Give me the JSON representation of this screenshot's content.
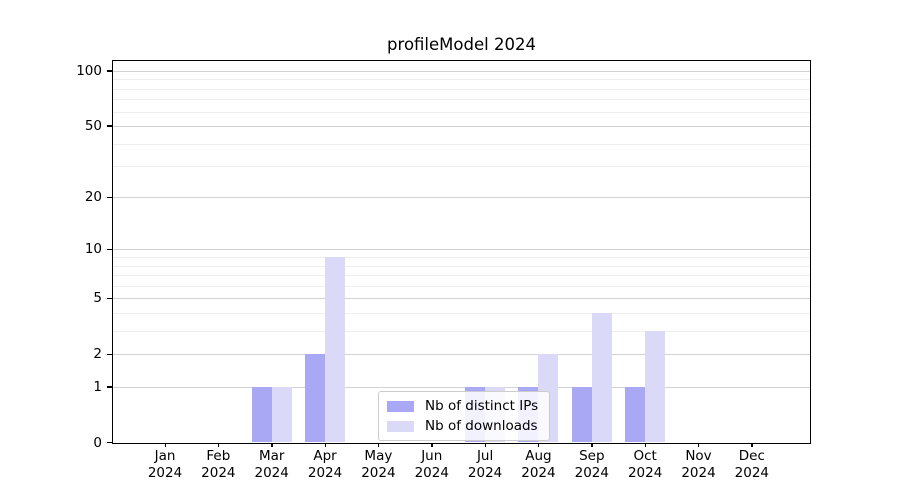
{
  "title": "profileModel 2024",
  "chart_data": {
    "type": "bar",
    "categories": [
      "Jan 2024",
      "Feb 2024",
      "Mar 2024",
      "Apr 2024",
      "May 2024",
      "Jun 2024",
      "Jul 2024",
      "Aug 2024",
      "Sep 2024",
      "Oct 2024",
      "Nov 2024",
      "Dec 2024"
    ],
    "x_tick_month_labels": [
      "Jan",
      "Feb",
      "Mar",
      "Apr",
      "May",
      "Jun",
      "Jul",
      "Aug",
      "Sep",
      "Oct",
      "Nov",
      "Dec"
    ],
    "x_tick_year_label": "2024",
    "series": [
      {
        "name": "Nb of distinct IPs",
        "color": "#a8a8f4",
        "values": [
          0,
          0,
          1,
          2,
          0,
          0,
          1,
          1,
          1,
          1,
          0,
          0
        ]
      },
      {
        "name": "Nb of downloads",
        "color": "#dadaf8",
        "values": [
          0,
          0,
          1,
          9,
          0,
          0,
          1,
          2,
          4,
          3,
          0,
          0
        ]
      }
    ],
    "title": "profileModel 2024",
    "xlabel": "",
    "ylabel": "",
    "y_axis": {
      "scale": "log1p",
      "major_ticks": [
        0,
        1,
        2,
        5,
        10,
        20,
        50,
        100
      ],
      "minor_gridlines": [
        3,
        4,
        6,
        7,
        8,
        9,
        30,
        40,
        60,
        70,
        80,
        90
      ],
      "ylim": [
        0,
        113
      ]
    },
    "grid": true,
    "legend": {
      "position": "lower center inside",
      "items": [
        "Nb of distinct IPs",
        "Nb of downloads"
      ]
    }
  },
  "colors": {
    "bar_distinct_ips": "#a8a8f4",
    "bar_downloads": "#dadaf8",
    "major_grid": "#d2d2d2",
    "minor_grid": "#efefef",
    "spine": "#000000",
    "legend_border": "#cccccc",
    "background": "#ffffff"
  }
}
